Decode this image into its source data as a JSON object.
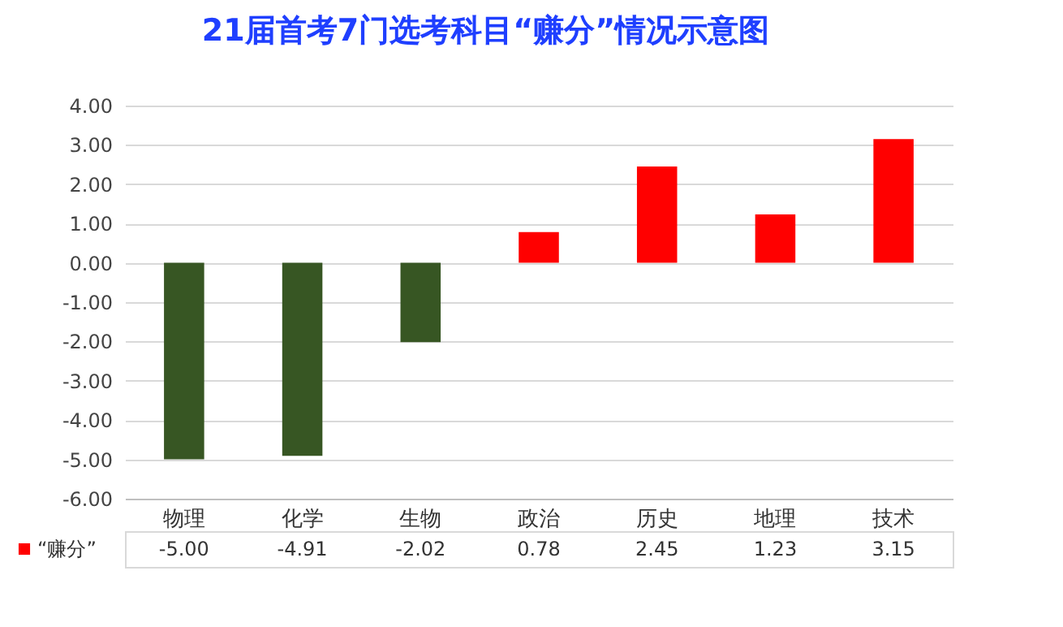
{
  "chart_data": {
    "type": "bar",
    "title": "21届首考7门选考科目“赚分”情况示意图",
    "categories": [
      "物理",
      "化学",
      "生物",
      "政治",
      "历史",
      "地理",
      "技术"
    ],
    "series": [
      {
        "name": "“赚分”",
        "color": "#ff0000",
        "colors": [
          "#375623",
          "#375623",
          "#375623",
          "#ff0000",
          "#ff0000",
          "#ff0000",
          "#ff0000"
        ],
        "values": [
          -5.0,
          -4.91,
          -2.02,
          0.78,
          2.45,
          1.23,
          3.15
        ],
        "value_labels": [
          "-5.00",
          "-4.91",
          "-2.02",
          "0.78",
          "2.45",
          "1.23",
          "3.15"
        ]
      }
    ],
    "ylim": [
      -6,
      4
    ],
    "yticks": [
      {
        "value": -6,
        "label": "-6.00"
      },
      {
        "value": -5,
        "label": "-5.00"
      },
      {
        "value": -4,
        "label": "-4.00"
      },
      {
        "value": -3,
        "label": "-3.00"
      },
      {
        "value": -2,
        "label": "-2.00"
      },
      {
        "value": -1,
        "label": "-1.00"
      },
      {
        "value": 0,
        "label": "0.00"
      },
      {
        "value": 1,
        "label": "1.00"
      },
      {
        "value": 2,
        "label": "2.00"
      },
      {
        "value": 3,
        "label": "3.00"
      },
      {
        "value": 4,
        "label": "4.00"
      }
    ],
    "grid": "y",
    "legend": "bottom left"
  }
}
